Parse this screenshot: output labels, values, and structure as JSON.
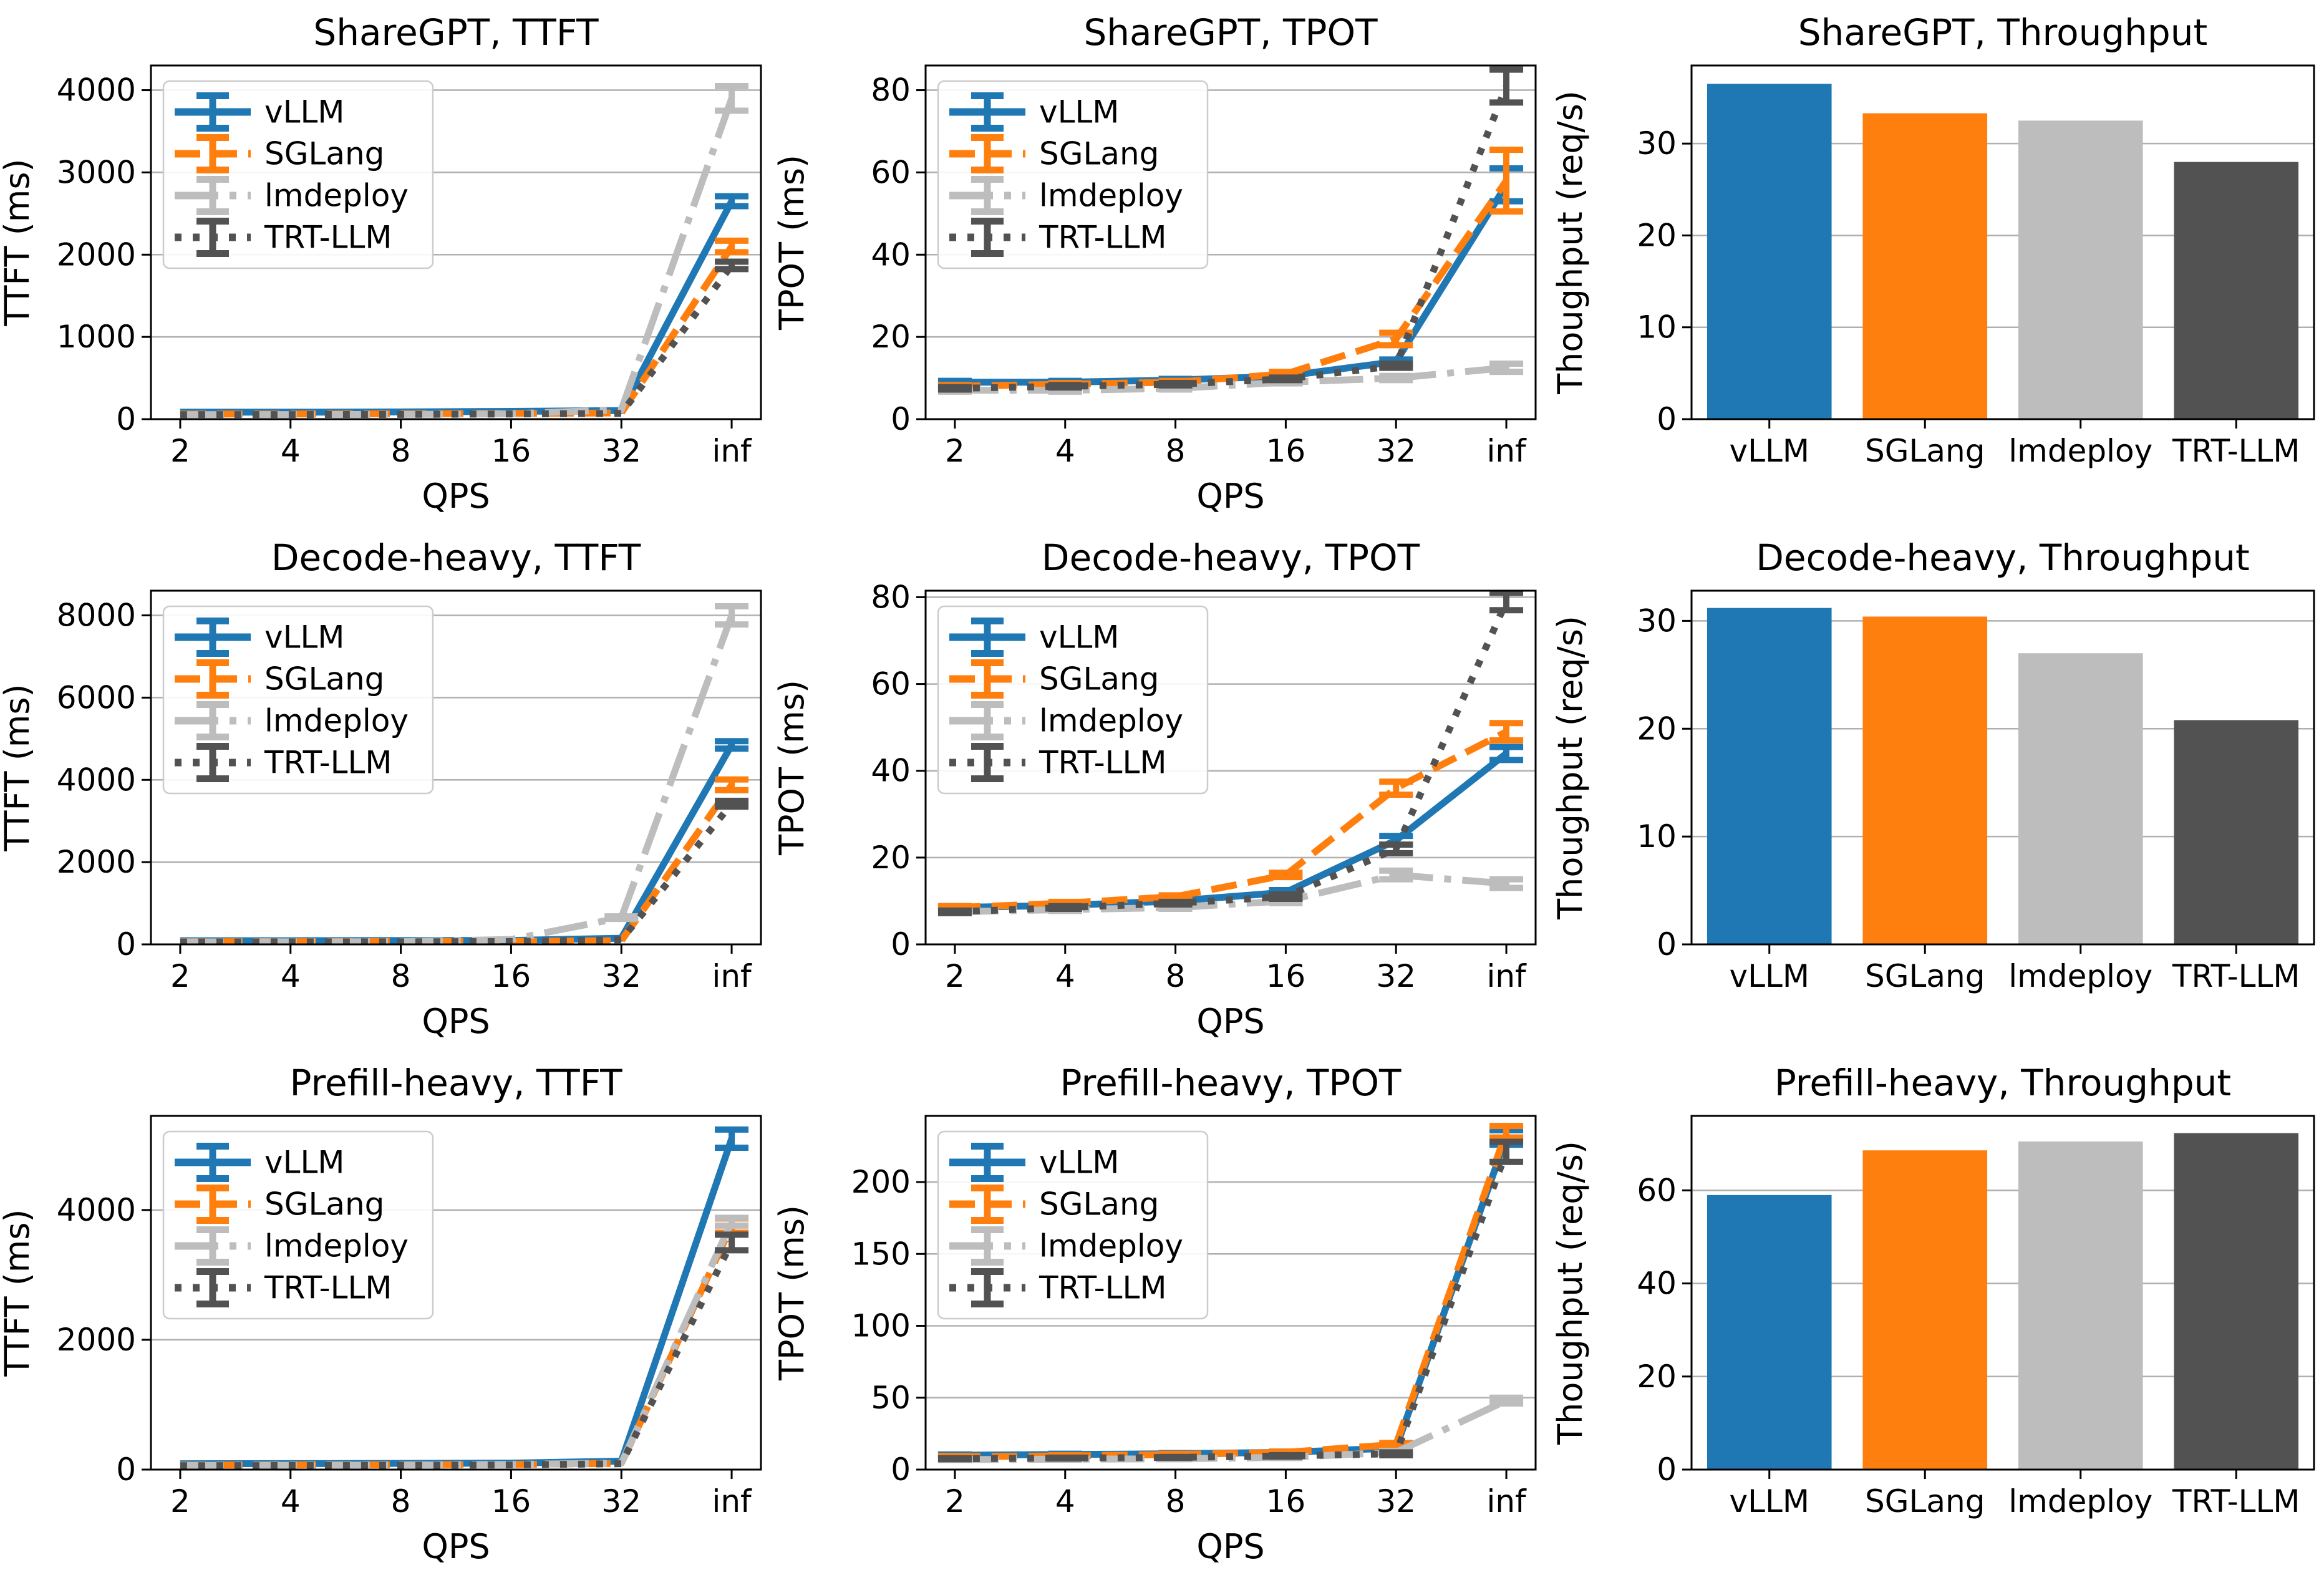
{
  "figure": {
    "background": "#ffffff",
    "description_labels": {
      "qps_axis": "QPS",
      "ttft_axis": "TTFT (ms)",
      "tpot_axis": "TPOT (ms)",
      "throughput_axis": "Thoughput (req/s)"
    }
  },
  "palette": {
    "vllm": "#1f77b4",
    "sglang": "#ff7f0e",
    "lmdeploy": "#bdbdbd",
    "trtllm": "#525252",
    "grid": "#b0b0b0",
    "spine": "#000000",
    "legend_border": "#cccccc",
    "legend_bg": "rgba(255,255,255,0.9)"
  },
  "chart_data": [
    {
      "type": "line",
      "title": "ShareGPT, TTFT",
      "xlabel": "QPS",
      "ylabel": "TTFT (ms)",
      "categories": [
        "2",
        "4",
        "8",
        "16",
        "32",
        "inf"
      ],
      "ylim": [
        0,
        4300
      ],
      "yticks": [
        0,
        1000,
        2000,
        3000,
        4000
      ],
      "grid": "horizontal",
      "legend": {
        "position": "upper-left",
        "entries": [
          "vLLM",
          "SGLang",
          "lmdeploy",
          "TRT-LLM"
        ]
      },
      "series": [
        {
          "name": "vLLM",
          "color": "#1f77b4",
          "style": "solid",
          "values": [
            85,
            85,
            88,
            95,
            105,
            2650
          ],
          "err": [
            0,
            0,
            0,
            0,
            0,
            60
          ]
        },
        {
          "name": "SGLang",
          "color": "#ff7f0e",
          "style": "dashed",
          "values": [
            62,
            63,
            65,
            70,
            75,
            2100
          ],
          "err": [
            0,
            0,
            0,
            0,
            0,
            70
          ]
        },
        {
          "name": "lmdeploy",
          "color": "#bdbdbd",
          "style": "dashdot",
          "values": [
            55,
            56,
            58,
            65,
            115,
            3900
          ],
          "err": [
            0,
            0,
            0,
            0,
            0,
            150
          ]
        },
        {
          "name": "TRT-LLM",
          "color": "#525252",
          "style": "dotted",
          "values": [
            55,
            56,
            58,
            63,
            70,
            1870
          ],
          "err": [
            0,
            0,
            0,
            0,
            0,
            45
          ]
        }
      ]
    },
    {
      "type": "line",
      "title": "ShareGPT, TPOT",
      "xlabel": "QPS",
      "ylabel": "TPOT (ms)",
      "categories": [
        "2",
        "4",
        "8",
        "16",
        "32",
        "inf"
      ],
      "ylim": [
        0,
        86
      ],
      "yticks": [
        0,
        20,
        40,
        60,
        80
      ],
      "grid": "horizontal",
      "legend": {
        "position": "upper-left",
        "entries": [
          "vLLM",
          "SGLang",
          "lmdeploy",
          "TRT-LLM"
        ]
      },
      "series": [
        {
          "name": "vLLM",
          "color": "#1f77b4",
          "style": "solid",
          "values": [
            9,
            9,
            9.5,
            10.5,
            14,
            57
          ],
          "err": [
            0.3,
            0.3,
            0.3,
            0.3,
            0.5,
            4
          ]
        },
        {
          "name": "SGLang",
          "color": "#ff7f0e",
          "style": "dashed",
          "values": [
            8,
            8.5,
            9,
            11,
            19.5,
            58
          ],
          "err": [
            0.3,
            0.3,
            0.3,
            0.5,
            1.5,
            7.5
          ]
        },
        {
          "name": "lmdeploy",
          "color": "#bdbdbd",
          "style": "dashdot",
          "values": [
            7,
            7,
            7.5,
            9,
            10,
            12.5
          ],
          "err": [
            0.3,
            0.3,
            0.3,
            0.3,
            0.5,
            1
          ]
        },
        {
          "name": "TRT-LLM",
          "color": "#525252",
          "style": "dotted",
          "values": [
            7.5,
            8,
            8.5,
            9.8,
            13,
            81
          ],
          "err": [
            0.3,
            0.3,
            0.3,
            0.3,
            0.5,
            4
          ]
        }
      ]
    },
    {
      "type": "bar",
      "title": "ShareGPT, Throughput",
      "xlabel": "",
      "ylabel": "Thoughput (req/s)",
      "categories": [
        "vLLM",
        "SGLang",
        "lmdeploy",
        "TRT-LLM"
      ],
      "values": [
        36.5,
        33.3,
        32.5,
        28
      ],
      "colors": [
        "#1f77b4",
        "#ff7f0e",
        "#bdbdbd",
        "#525252"
      ],
      "ylim": [
        0,
        38.5
      ],
      "yticks": [
        0,
        10,
        20,
        30
      ],
      "grid": "horizontal-above"
    },
    {
      "type": "line",
      "title": "Decode-heavy, TTFT",
      "xlabel": "QPS",
      "ylabel": "TTFT (ms)",
      "categories": [
        "2",
        "4",
        "8",
        "16",
        "32",
        "inf"
      ],
      "ylim": [
        0,
        8600
      ],
      "yticks": [
        0,
        2000,
        4000,
        6000,
        8000
      ],
      "grid": "horizontal",
      "legend": {
        "position": "upper-left",
        "entries": [
          "vLLM",
          "SGLang",
          "lmdeploy",
          "TRT-LLM"
        ]
      },
      "series": [
        {
          "name": "vLLM",
          "color": "#1f77b4",
          "style": "solid",
          "values": [
            90,
            90,
            92,
            95,
            150,
            4850
          ],
          "err": [
            0,
            0,
            0,
            0,
            0,
            90
          ]
        },
        {
          "name": "SGLang",
          "color": "#ff7f0e",
          "style": "dashed",
          "values": [
            65,
            66,
            68,
            72,
            90,
            3880
          ],
          "err": [
            0,
            0,
            0,
            0,
            0,
            130
          ]
        },
        {
          "name": "lmdeploy",
          "color": "#bdbdbd",
          "style": "dashdot",
          "values": [
            60,
            62,
            65,
            120,
            650,
            8000
          ],
          "err": [
            0,
            0,
            0,
            0,
            30,
            220
          ]
        },
        {
          "name": "TRT-LLM",
          "color": "#525252",
          "style": "dotted",
          "values": [
            58,
            60,
            62,
            70,
            110,
            3420
          ],
          "err": [
            0,
            0,
            0,
            0,
            0,
            70
          ]
        }
      ]
    },
    {
      "type": "line",
      "title": "Decode-heavy, TPOT",
      "xlabel": "QPS",
      "ylabel": "TPOT (ms)",
      "categories": [
        "2",
        "4",
        "8",
        "16",
        "32",
        "inf"
      ],
      "ylim": [
        0,
        81.5
      ],
      "yticks": [
        0,
        20,
        40,
        60,
        80
      ],
      "grid": "horizontal",
      "legend": {
        "position": "upper-left",
        "entries": [
          "vLLM",
          "SGLang",
          "lmdeploy",
          "TRT-LLM"
        ]
      },
      "series": [
        {
          "name": "vLLM",
          "color": "#1f77b4",
          "style": "solid",
          "values": [
            8.5,
            9,
            10,
            12,
            24,
            44
          ],
          "err": [
            0.3,
            0.3,
            0.3,
            0.5,
            1,
            1.5
          ]
        },
        {
          "name": "SGLang",
          "color": "#ff7f0e",
          "style": "dashed",
          "values": [
            8.5,
            9.5,
            11,
            16,
            36,
            49
          ],
          "err": [
            0.3,
            0.3,
            0.3,
            0.5,
            1.5,
            2
          ]
        },
        {
          "name": "lmdeploy",
          "color": "#bdbdbd",
          "style": "dashdot",
          "values": [
            7.5,
            8,
            8.5,
            10,
            16,
            14
          ],
          "err": [
            0.3,
            0.3,
            0.3,
            0.5,
            1,
            1
          ]
        },
        {
          "name": "TRT-LLM",
          "color": "#525252",
          "style": "dotted",
          "values": [
            7.5,
            8.5,
            9.5,
            11,
            22,
            79
          ],
          "err": [
            0.3,
            0.3,
            0.3,
            0.5,
            1,
            2
          ]
        }
      ]
    },
    {
      "type": "bar",
      "title": "Decode-heavy, Throughput",
      "xlabel": "",
      "ylabel": "Thoughput (req/s)",
      "categories": [
        "vLLM",
        "SGLang",
        "lmdeploy",
        "TRT-LLM"
      ],
      "values": [
        31.2,
        30.4,
        27,
        20.8
      ],
      "colors": [
        "#1f77b4",
        "#ff7f0e",
        "#bdbdbd",
        "#525252"
      ],
      "ylim": [
        0,
        32.8
      ],
      "yticks": [
        0,
        10,
        20,
        30
      ],
      "grid": "horizontal-above"
    },
    {
      "type": "line",
      "title": "Prefill-heavy, TTFT",
      "xlabel": "QPS",
      "ylabel": "TTFT (ms)",
      "categories": [
        "2",
        "4",
        "8",
        "16",
        "32",
        "inf"
      ],
      "ylim": [
        0,
        5450
      ],
      "yticks": [
        0,
        2000,
        4000
      ],
      "grid": "horizontal",
      "legend": {
        "position": "upper-left",
        "entries": [
          "vLLM",
          "SGLang",
          "lmdeploy",
          "TRT-LLM"
        ]
      },
      "series": [
        {
          "name": "vLLM",
          "color": "#1f77b4",
          "style": "solid",
          "values": [
            90,
            92,
            95,
            100,
            130,
            5100
          ],
          "err": [
            0,
            0,
            0,
            0,
            0,
            140
          ]
        },
        {
          "name": "SGLang",
          "color": "#ff7f0e",
          "style": "dashed",
          "values": [
            70,
            72,
            75,
            80,
            95,
            3760
          ],
          "err": [
            0,
            0,
            0,
            0,
            0,
            110
          ]
        },
        {
          "name": "lmdeploy",
          "color": "#bdbdbd",
          "style": "dashdot",
          "values": [
            65,
            67,
            70,
            80,
            100,
            3820
          ],
          "err": [
            0,
            0,
            0,
            0,
            0,
            60
          ]
        },
        {
          "name": "TRT-LLM",
          "color": "#525252",
          "style": "dotted",
          "values": [
            60,
            62,
            65,
            72,
            90,
            3500
          ],
          "err": [
            0,
            0,
            0,
            0,
            0,
            120
          ]
        }
      ]
    },
    {
      "type": "line",
      "title": "Prefill-heavy, TPOT",
      "xlabel": "QPS",
      "ylabel": "TPOT (ms)",
      "categories": [
        "2",
        "4",
        "8",
        "16",
        "32",
        "inf"
      ],
      "ylim": [
        0,
        246
      ],
      "yticks": [
        0,
        50,
        100,
        150,
        200
      ],
      "grid": "horizontal",
      "legend": {
        "position": "upper-left",
        "entries": [
          "vLLM",
          "SGLang",
          "lmdeploy",
          "TRT-LLM"
        ]
      },
      "series": [
        {
          "name": "vLLM",
          "color": "#1f77b4",
          "style": "solid",
          "values": [
            10,
            10.5,
            11,
            12,
            15,
            231
          ],
          "err": [
            0.5,
            0.5,
            0.5,
            0.5,
            1,
            5
          ]
        },
        {
          "name": "SGLang",
          "color": "#ff7f0e",
          "style": "dashed",
          "values": [
            9,
            9.5,
            10.5,
            12,
            17.5,
            235
          ],
          "err": [
            0.5,
            0.5,
            0.5,
            0.5,
            1,
            4
          ]
        },
        {
          "name": "lmdeploy",
          "color": "#bdbdbd",
          "style": "dashdot",
          "values": [
            7,
            7.2,
            7.5,
            8.5,
            12,
            48
          ],
          "err": [
            0.3,
            0.3,
            0.3,
            0.5,
            1,
            2
          ]
        },
        {
          "name": "TRT-LLM",
          "color": "#525252",
          "style": "dotted",
          "values": [
            7.5,
            8,
            8.5,
            9.5,
            11,
            221
          ],
          "err": [
            0.3,
            0.3,
            0.3,
            0.5,
            1,
            7
          ]
        }
      ]
    },
    {
      "type": "bar",
      "title": "Prefill-heavy, Throughput",
      "xlabel": "",
      "ylabel": "Thoughput (req/s)",
      "categories": [
        "vLLM",
        "SGLang",
        "lmdeploy",
        "TRT-LLM"
      ],
      "values": [
        59,
        68.6,
        70.5,
        72.3
      ],
      "colors": [
        "#1f77b4",
        "#ff7f0e",
        "#bdbdbd",
        "#525252"
      ],
      "ylim": [
        0,
        76
      ],
      "yticks": [
        0,
        20,
        40,
        60
      ],
      "grid": "horizontal-above"
    }
  ]
}
